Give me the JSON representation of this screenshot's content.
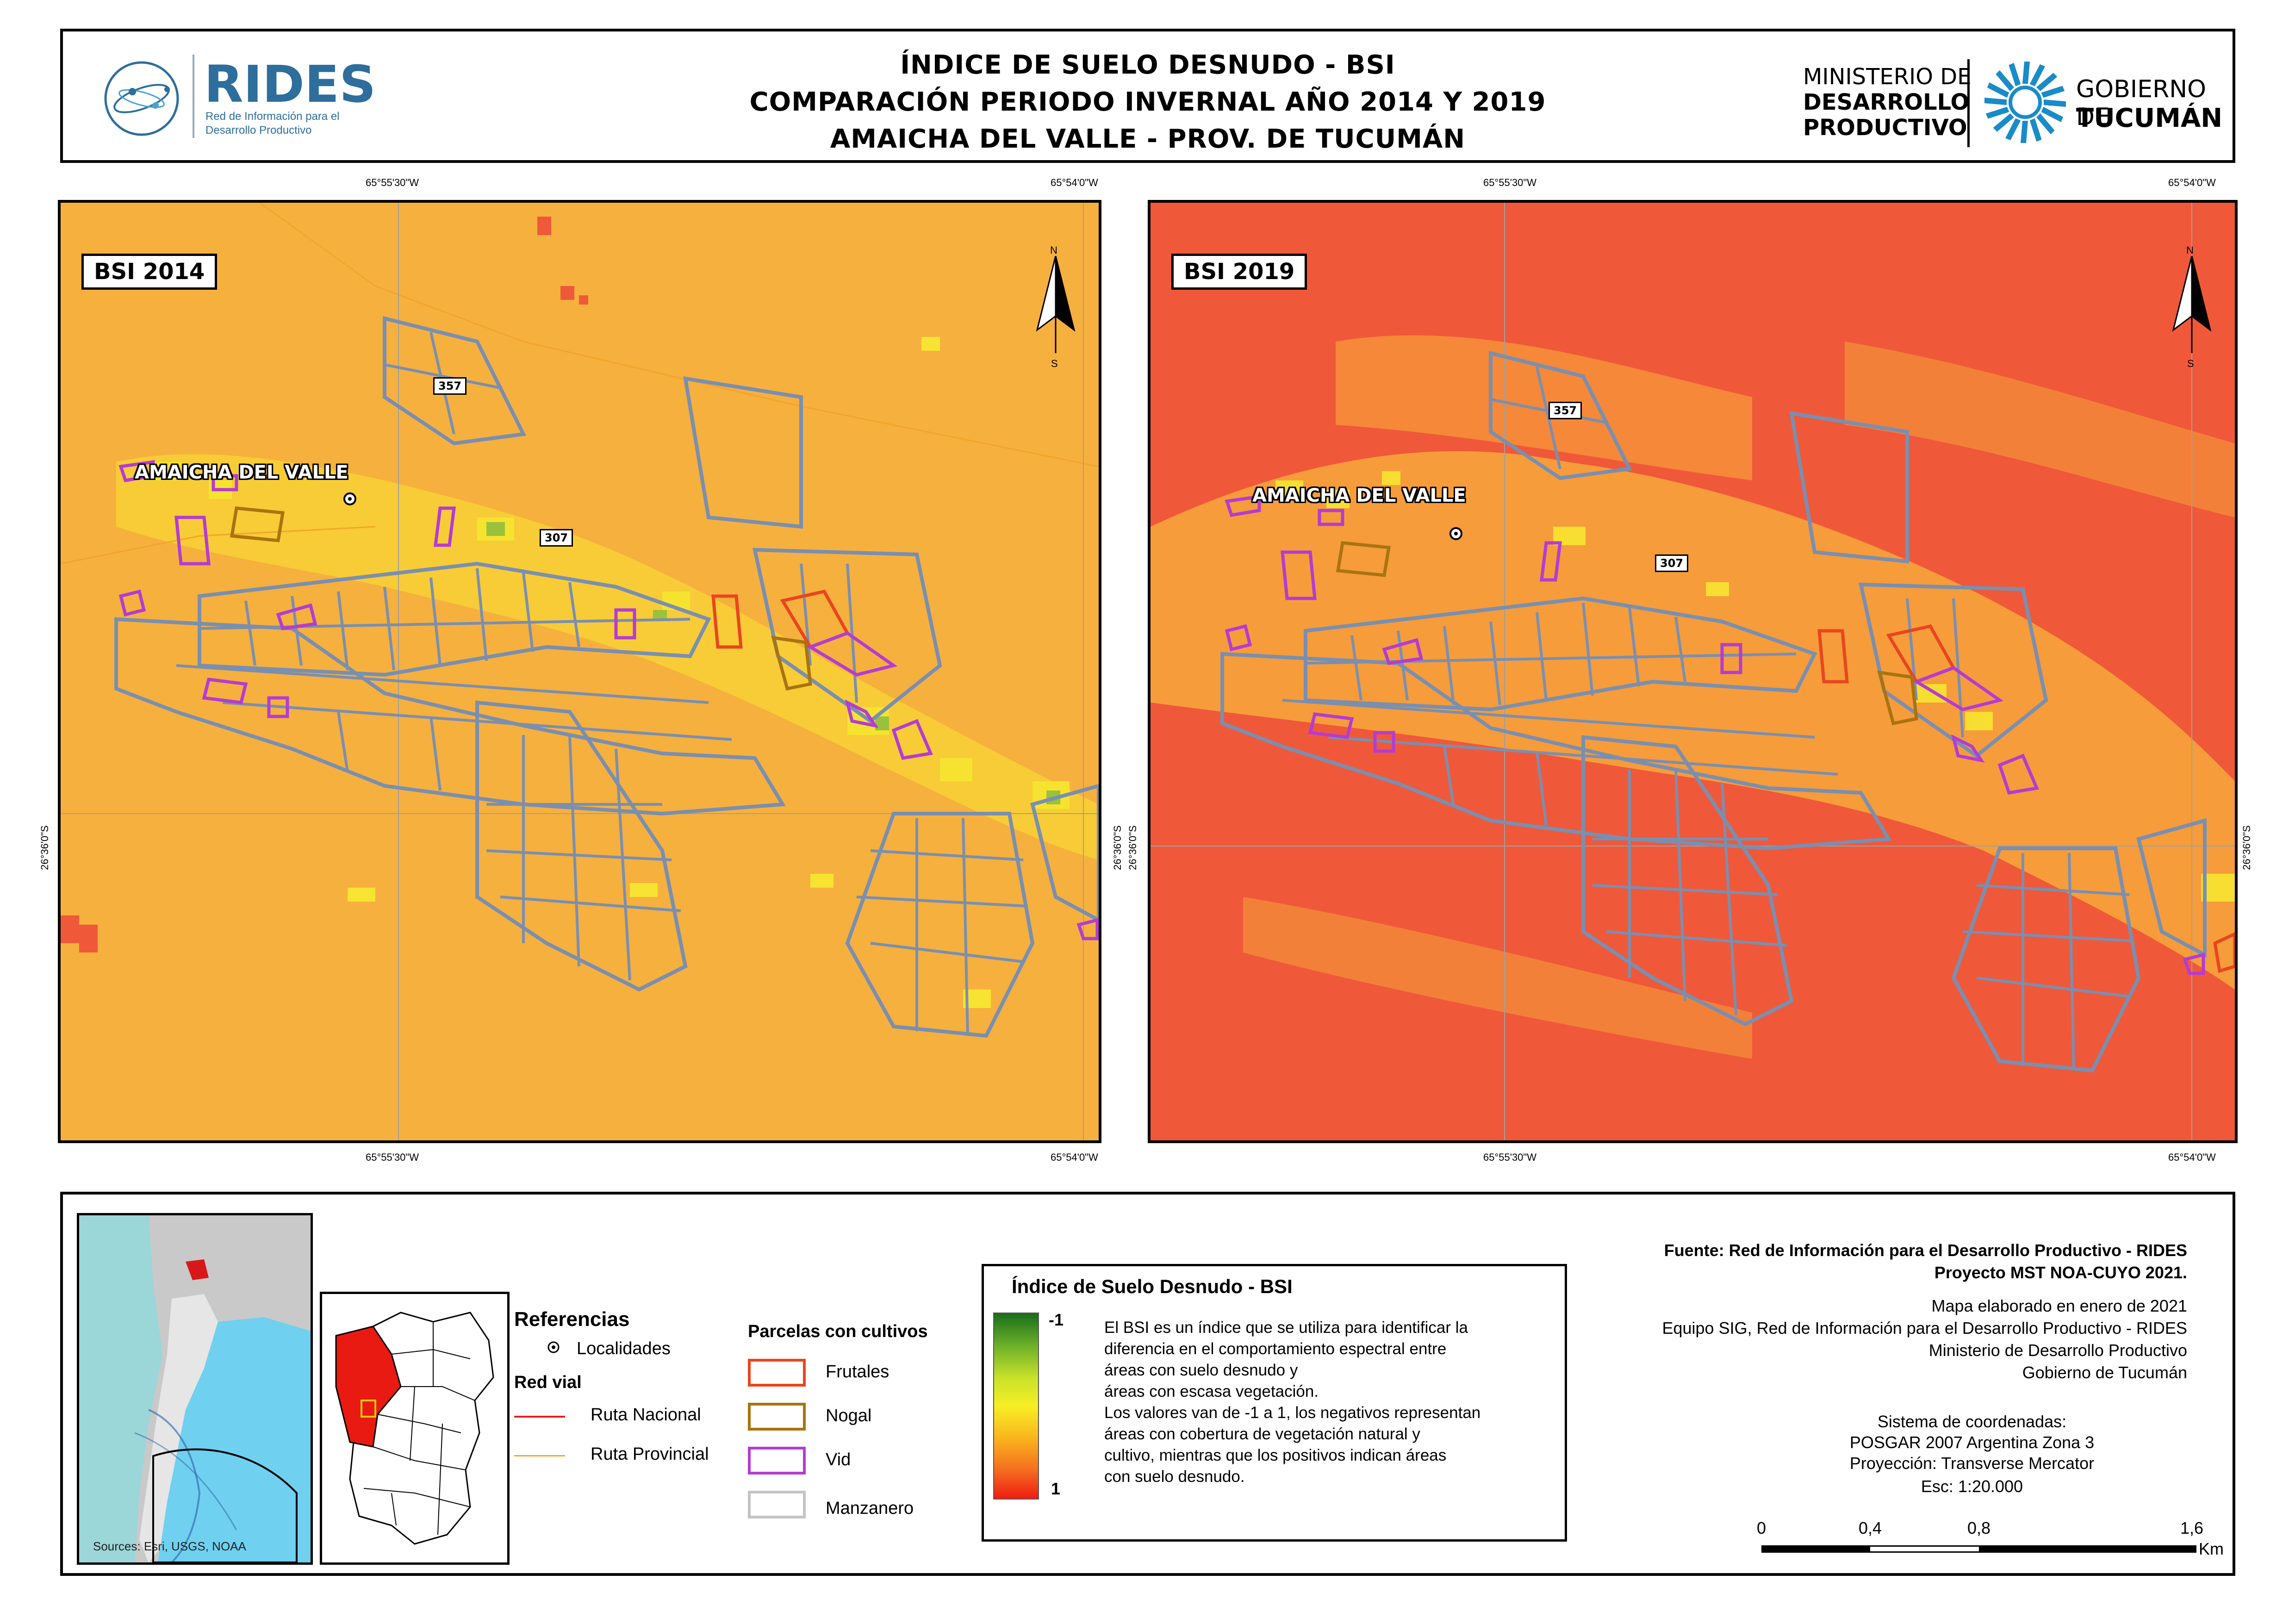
{
  "header": {
    "logo_left_name": "RIDES",
    "logo_left_sub1": "Red de Información para el",
    "logo_left_sub2": "Desarrollo Productivo",
    "title_line1": "ÍNDICE DE SUELO DESNUDO - BSI",
    "title_line2": "COMPARACIÓN PERIODO INVERNAL AÑO 2014 Y 2019",
    "title_line3": "AMAICHA DEL VALLE - PROV. DE TUCUMÁN",
    "ministry_line1": "MINISTERIO DE",
    "ministry_line2": "DESARROLLO",
    "ministry_line3": "PRODUCTIVO",
    "gov_line1": "GOBIERNO DE",
    "gov_line2": "TUCUMÁN"
  },
  "maps": [
    {
      "label": "BSI 2014",
      "coord_top_left": "65°55'30\"W",
      "coord_top_right": "65°54'0\"W",
      "coord_bottom_left": "65°55'30\"W",
      "coord_bottom_right": "65°54'0\"W",
      "coord_left": "26°36'0\"S",
      "coord_right": "26°36'0\"S",
      "base_color": "#f6b03e",
      "road_labels": [
        "357",
        "307"
      ],
      "locality": "AMAICHA DEL VALLE",
      "north_n": "N",
      "north_s": "S"
    },
    {
      "label": "BSI 2019",
      "coord_top_left": "65°55'30\"W",
      "coord_top_right": "65°54'0\"W",
      "coord_bottom_left": "65°55'30\"W",
      "coord_bottom_right": "65°54'0\"W",
      "coord_left": "26°36'0\"S",
      "coord_right": "26°36'0\"S",
      "base_color": "#f0583a",
      "road_labels": [
        "357",
        "307"
      ],
      "locality": "AMAICHA DEL VALLE",
      "north_n": "N",
      "north_s": "S"
    }
  ],
  "inset": {
    "sources": "Sources: Esri, USGS, NOAA"
  },
  "references": {
    "title": "Referencias",
    "localidades": "Localidades",
    "red_vial": "Red vial",
    "ruta_nacional": "Ruta Nacional",
    "ruta_provincial": "Ruta Provincial",
    "ruta_nacional_color": "#e8201c",
    "ruta_provincial_color": "#f3a52a"
  },
  "parcelas": {
    "title": "Parcelas con cultivos",
    "items": [
      {
        "label": "Frutales",
        "color": "#e8461e"
      },
      {
        "label": "Nogal",
        "color": "#a9740f"
      },
      {
        "label": "Vid",
        "color": "#b43cd2"
      },
      {
        "label": "Manzanero",
        "color": "#9a9a9a"
      }
    ]
  },
  "bsi_legend": {
    "title": "Índice de Suelo Desnudo - BSI",
    "min_label": "-1",
    "max_label": "1",
    "description": [
      "El BSI es un índice que se utiliza para identificar la",
      "diferencia en el comportamiento espectral entre",
      "áreas con suelo desnudo y",
      "áreas con escasa vegetación.",
      "Los valores van de -1 a 1, los negativos representan",
      "áreas con cobertura de vegetación natural y",
      "cultivo, mientras que los positivos indican áreas",
      "con suelo desnudo."
    ]
  },
  "credits": {
    "fuente_line1": "Fuente: Red de Información para el Desarrollo Productivo - RIDES",
    "fuente_line2": "Proyecto MST NOA-CUYO 2021.",
    "elaborado": "Mapa elaborado en enero de 2021",
    "equipo": "Equipo SIG, Red de Información para el Desarrollo Productivo - RIDES",
    "ministerio": "Ministerio de Desarrollo Productivo",
    "gobierno": "Gobierno de Tucumán",
    "sistema": "Sistema de coordenadas:",
    "posgar": "POSGAR 2007 Argentina Zona 3",
    "proyeccion": "Proyección: Transverse Mercator",
    "escala": "Esc: 1:20.000"
  },
  "scalebar": {
    "ticks": [
      "0",
      "0,4",
      "0,8",
      "1,6"
    ],
    "unit": "Km"
  }
}
